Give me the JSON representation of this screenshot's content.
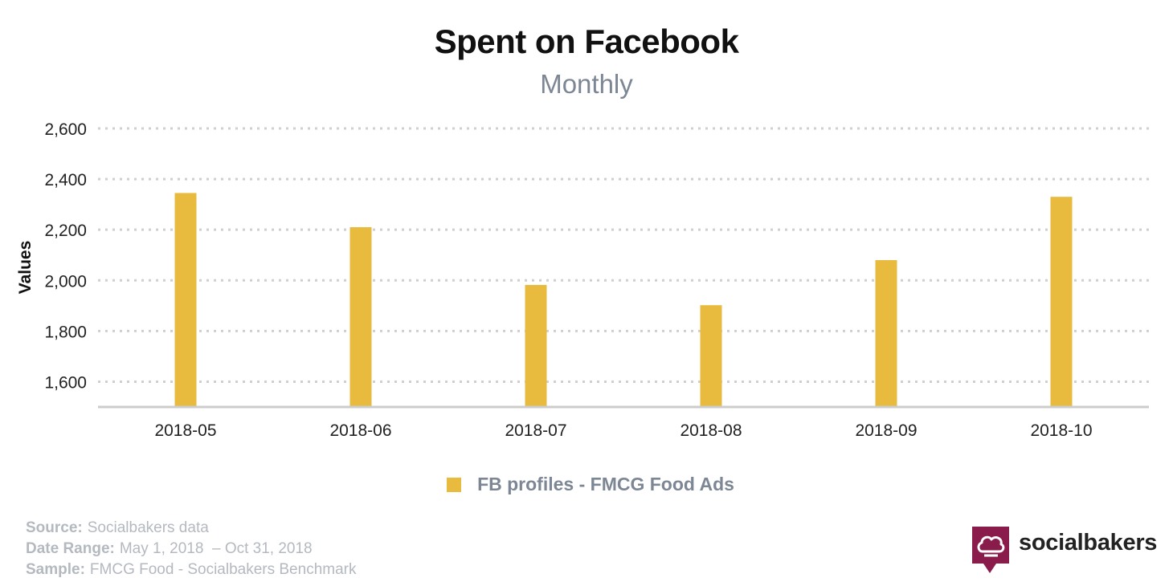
{
  "chart_data": {
    "type": "bar",
    "title": "Spent on Facebook",
    "subtitle": "Monthly",
    "xlabel": "",
    "ylabel": "Values",
    "categories": [
      "2018-05",
      "2018-06",
      "2018-07",
      "2018-08",
      "2018-09",
      "2018-10"
    ],
    "series": [
      {
        "name": "FB profiles - FMCG Food Ads",
        "color": "#e8bb3e",
        "values": [
          2345,
          2210,
          1982,
          1902,
          2080,
          2330
        ]
      }
    ],
    "ylim": [
      1500,
      2600
    ],
    "yticks": [
      1600,
      1800,
      2000,
      2200,
      2400,
      2600
    ],
    "ytick_labels": [
      "1,600",
      "1,800",
      "2,000",
      "2,200",
      "2,400",
      "2,600"
    ],
    "grid": true,
    "legend_position": "bottom-center"
  },
  "footer": {
    "source_label": "Source:",
    "source_value": "Socialbakers data",
    "date_label": "Date Range:",
    "date_value": "May 1, 2018  – Oct 31, 2018",
    "sample_label": "Sample:",
    "sample_value": "FMCG Food - Socialbakers Benchmark"
  },
  "brand": {
    "name": "socialbakers",
    "logo_icon": "chef-hat-speech-bubble-icon",
    "logo_color": "#8a1c4b"
  }
}
